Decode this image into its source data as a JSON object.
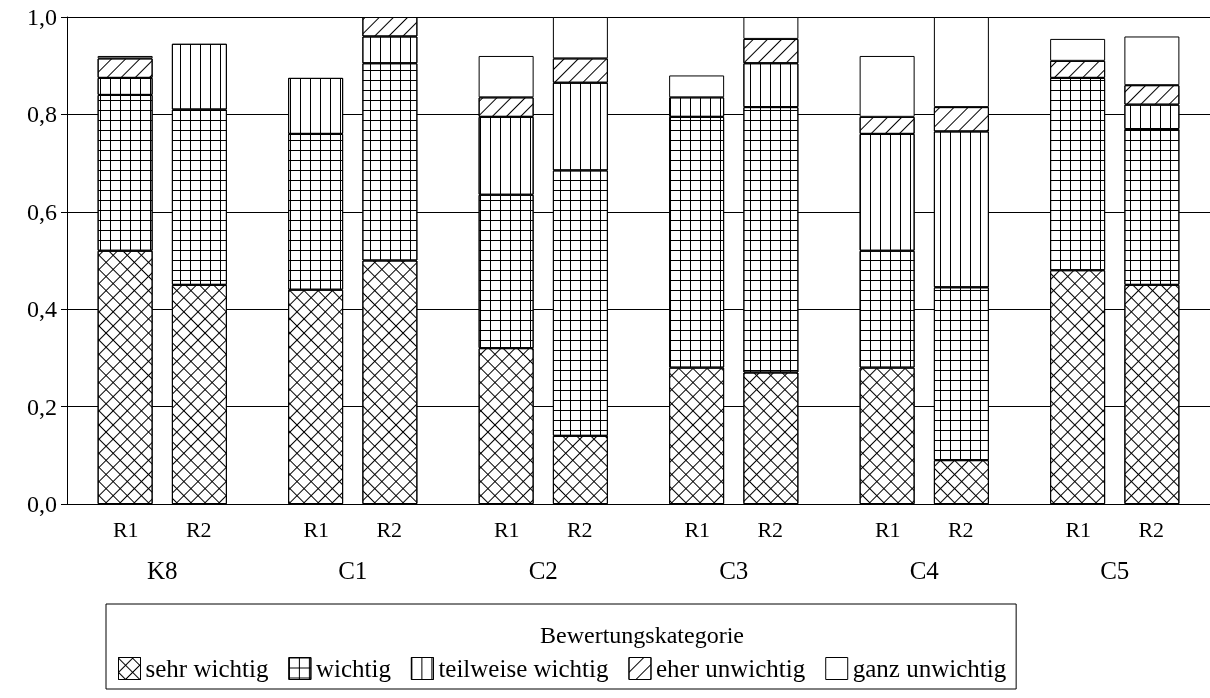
{
  "chart_data": {
    "type": "bar",
    "stacked": true,
    "categories": [
      "R1",
      "R2",
      "R1",
      "R2",
      "R1",
      "R2",
      "R1",
      "R2",
      "R1",
      "R2",
      "R1",
      "R2"
    ],
    "annotations": [
      "K8",
      "C1",
      "C2",
      "C3",
      "C4",
      "C5"
    ],
    "legend_title": "Bewertungskategorie",
    "series": [
      {
        "name": "sehr wichtig",
        "color": "#ffffff",
        "values": [
          0.52,
          0.45,
          0.44,
          0.5,
          0.32,
          0.14,
          0.28,
          0.27,
          0.28,
          0.09,
          0.48,
          0.45
        ]
      },
      {
        "name": "wichtig",
        "color": "#ffffff",
        "values": [
          0.32,
          0.36,
          0.32,
          0.405,
          0.315,
          0.545,
          0.515,
          0.545,
          0.24,
          0.355,
          0.395,
          0.32
        ]
      },
      {
        "name": "teilweise wichtig",
        "color": "#ffffff",
        "values": [
          0.035,
          0.135,
          0.115,
          0.055,
          0.16,
          0.18,
          0.04,
          0.09,
          0.24,
          0.32,
          null,
          0.05
        ]
      },
      {
        "name": "eher unwichtig",
        "color": "#ffffff",
        "values": [
          0.04,
          null,
          null,
          0.04,
          0.04,
          0.05,
          0,
          0.05,
          0.035,
          0.05,
          0.035,
          0.04
        ]
      },
      {
        "name": "ganz unwichtig",
        "color": "#ffffff",
        "values": [
          0.005,
          0,
          0,
          0,
          0.085,
          0.085,
          0.045,
          0.045,
          0.125,
          0.185,
          0.045,
          0.1
        ]
      }
    ],
    "ylim": [
      0,
      1
    ],
    "yticks": [
      {
        "value": 0,
        "label": "0,0"
      },
      {
        "value": 0.2,
        "label": "0,2"
      },
      {
        "value": 0.4,
        "label": "0,4"
      },
      {
        "value": 0.6,
        "label": "0,6"
      },
      {
        "value": 0.8,
        "label": "0,8"
      },
      {
        "value": 1,
        "label": "1,0"
      }
    ],
    "grid": "y",
    "legend": "bottom"
  }
}
